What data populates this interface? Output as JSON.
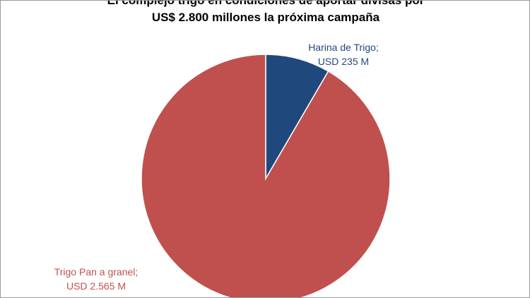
{
  "chart_data": {
    "type": "pie",
    "title_lines": [
      "El complejo trigo en condiciones de aportar divisas por",
      "US$ 2.800 millones la próxima campaña"
    ],
    "series": [
      {
        "name": "Harina de Trigo",
        "value": 235,
        "label_name": "Harina de Trigo;",
        "label_value": "USD 235 M",
        "color": "#1f497d"
      },
      {
        "name": "Trigo Pan a granel",
        "value": 2565,
        "label_name": "Trigo Pan a granel;",
        "label_value": "USD 2.565 M",
        "color": "#c0504d"
      }
    ],
    "start_angle_deg": 0,
    "legend": "none"
  }
}
